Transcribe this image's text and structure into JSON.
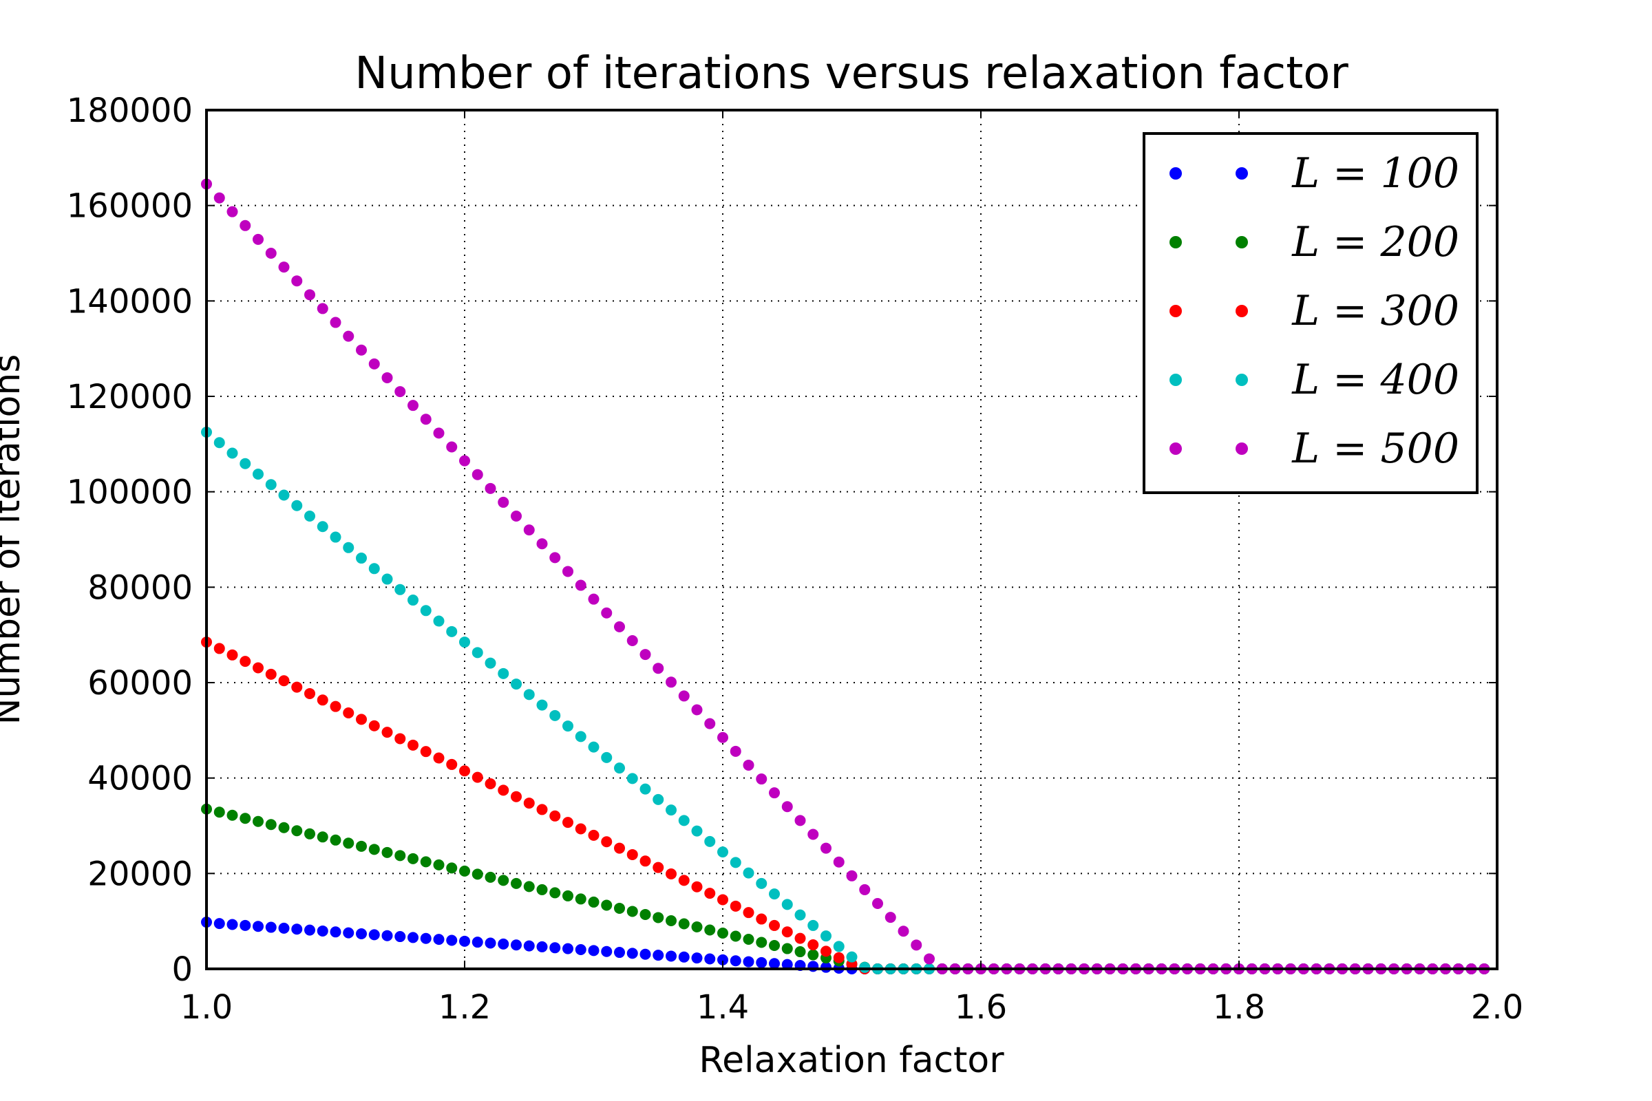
{
  "chart_data": {
    "type": "scatter",
    "title": "Number of iterations versus relaxation factor",
    "xlabel": "Relaxation factor",
    "ylabel": "Number of iterations",
    "xlim": [
      1.0,
      2.0
    ],
    "ylim": [
      0,
      180000
    ],
    "xticks": [
      "1.0",
      "1.2",
      "1.4",
      "1.6",
      "1.8",
      "2.0"
    ],
    "yticks": [
      "0",
      "20000",
      "40000",
      "60000",
      "80000",
      "100000",
      "120000",
      "140000",
      "160000",
      "180000"
    ],
    "grid": true,
    "grid_style": "dotted",
    "legend_position": "upper right",
    "x": [
      1.0,
      1.01,
      1.02,
      1.03,
      1.04,
      1.05,
      1.06,
      1.07,
      1.08,
      1.09,
      1.1,
      1.11,
      1.12,
      1.13,
      1.14,
      1.15,
      1.16,
      1.17,
      1.18,
      1.19,
      1.2,
      1.21,
      1.22,
      1.23,
      1.24,
      1.25,
      1.26,
      1.27,
      1.28,
      1.29,
      1.3,
      1.31,
      1.32,
      1.33,
      1.34,
      1.35,
      1.36,
      1.37,
      1.38,
      1.39,
      1.4,
      1.41,
      1.42,
      1.43,
      1.44,
      1.45,
      1.46,
      1.47,
      1.48,
      1.49,
      1.5,
      1.51,
      1.52,
      1.53,
      1.54,
      1.55,
      1.56,
      1.57,
      1.58,
      1.59,
      1.6,
      1.61,
      1.62,
      1.63,
      1.64,
      1.65,
      1.66,
      1.67,
      1.68,
      1.69,
      1.7,
      1.71,
      1.72,
      1.73,
      1.74,
      1.75,
      1.76,
      1.77,
      1.78,
      1.79,
      1.8,
      1.81,
      1.82,
      1.83,
      1.84,
      1.85,
      1.86,
      1.87,
      1.88,
      1.89,
      1.9,
      1.91,
      1.92,
      1.93,
      1.94,
      1.95,
      1.96,
      1.97,
      1.98,
      1.99
    ],
    "series": [
      {
        "name": "L = 100",
        "color": "#0000ff",
        "values": [
          9800,
          9500,
          9305,
          9110,
          8915,
          8720,
          8525,
          8330,
          8135,
          7940,
          7745,
          7550,
          7355,
          7160,
          6965,
          6770,
          6575,
          6380,
          6185,
          5990,
          5795,
          5600,
          5405,
          5210,
          5015,
          4820,
          4625,
          4430,
          4235,
          4040,
          3845,
          3650,
          3455,
          3260,
          3065,
          2870,
          2675,
          2480,
          2285,
          2090,
          1895,
          1700,
          1505,
          1310,
          1115,
          920,
          725,
          530,
          335,
          140,
          0,
          0,
          0,
          0,
          0,
          0,
          0,
          0,
          0,
          0,
          0,
          0,
          0,
          0,
          0,
          0,
          0,
          0,
          0,
          0,
          0,
          0,
          0,
          0,
          0,
          0,
          0,
          0,
          0,
          0,
          0,
          0,
          0,
          0,
          0,
          0,
          0,
          0,
          0,
          0,
          0,
          0,
          0,
          0,
          0,
          0,
          0,
          0,
          0,
          0
        ]
      },
      {
        "name": "L = 200",
        "color": "#008000",
        "values": [
          33500,
          32850,
          32200,
          31550,
          30900,
          30250,
          29600,
          28950,
          28300,
          27650,
          27000,
          26350,
          25700,
          25050,
          24400,
          23750,
          23100,
          22450,
          21800,
          21150,
          20500,
          19850,
          19200,
          18550,
          17900,
          17250,
          16600,
          15950,
          15300,
          14650,
          14000,
          13350,
          12700,
          12050,
          11400,
          10750,
          10100,
          9450,
          8800,
          8150,
          7500,
          6850,
          6200,
          5550,
          4900,
          4250,
          3600,
          2950,
          2300,
          1650,
          1000,
          350,
          0,
          0,
          0,
          0,
          0,
          0,
          0,
          0,
          0,
          0,
          0,
          0,
          0,
          0,
          0,
          0,
          0,
          0,
          0,
          0,
          0,
          0,
          0,
          0,
          0,
          0,
          0,
          0,
          0,
          0,
          0,
          0,
          0,
          0,
          0,
          0,
          0,
          0,
          0,
          0,
          0,
          0,
          0,
          0,
          0,
          0,
          0,
          0
        ]
      },
      {
        "name": "L = 300",
        "color": "#ff0000",
        "values": [
          68500,
          67150,
          65800,
          64450,
          63100,
          61750,
          60400,
          59050,
          57700,
          56350,
          55000,
          53650,
          52300,
          50950,
          49600,
          48250,
          46900,
          45550,
          44200,
          42850,
          41500,
          40150,
          38800,
          37450,
          36100,
          34750,
          33400,
          32050,
          30700,
          29350,
          28000,
          26650,
          25300,
          23950,
          22600,
          21250,
          19900,
          18550,
          17200,
          15850,
          14500,
          13150,
          11800,
          10450,
          9100,
          7750,
          6400,
          5050,
          3700,
          2350,
          1000,
          0,
          0,
          0,
          0,
          0,
          0,
          0,
          0,
          0,
          0,
          0,
          0,
          0,
          0,
          0,
          0,
          0,
          0,
          0,
          0,
          0,
          0,
          0,
          0,
          0,
          0,
          0,
          0,
          0,
          0,
          0,
          0,
          0,
          0,
          0,
          0,
          0,
          0,
          0,
          0,
          0,
          0,
          0,
          0,
          0,
          0,
          0,
          0,
          0
        ]
      },
      {
        "name": "L = 400",
        "color": "#00bfbf",
        "values": [
          112500,
          110300,
          108100,
          105900,
          103700,
          101500,
          99300,
          97100,
          94900,
          92700,
          90500,
          88300,
          86100,
          83900,
          81700,
          79500,
          77300,
          75100,
          72900,
          70700,
          68500,
          66300,
          64100,
          61900,
          59700,
          57500,
          55300,
          53100,
          50900,
          48700,
          46500,
          44300,
          42100,
          39900,
          37700,
          35500,
          33300,
          31100,
          28900,
          26700,
          24500,
          22300,
          20100,
          17900,
          15700,
          13500,
          11300,
          9100,
          6900,
          4700,
          2500,
          300,
          0,
          0,
          0,
          0,
          0,
          0,
          0,
          0,
          0,
          0,
          0,
          0,
          0,
          0,
          0,
          0,
          0,
          0,
          0,
          0,
          0,
          0,
          0,
          0,
          0,
          0,
          0,
          0,
          0,
          0,
          0,
          0,
          0,
          0,
          0,
          0,
          0,
          0,
          0,
          0,
          0,
          0,
          0,
          0,
          0,
          0,
          0,
          0
        ]
      },
      {
        "name": "L = 500",
        "color": "#bf00bf",
        "values": [
          164500,
          161600,
          158700,
          155800,
          152900,
          150000,
          147100,
          144200,
          141300,
          138400,
          135500,
          132600,
          129700,
          126800,
          123900,
          121000,
          118100,
          115200,
          112300,
          109400,
          106500,
          103600,
          100700,
          97800,
          94900,
          92000,
          89100,
          86200,
          83300,
          80400,
          77500,
          74600,
          71700,
          68800,
          65900,
          63000,
          60100,
          57200,
          54300,
          51400,
          48500,
          45600,
          42700,
          39800,
          36900,
          34000,
          31100,
          28200,
          25300,
          22400,
          19500,
          16600,
          13700,
          10800,
          7900,
          5000,
          2100,
          0,
          0,
          0,
          0,
          0,
          0,
          0,
          0,
          0,
          0,
          0,
          0,
          0,
          0,
          0,
          0,
          0,
          0,
          0,
          0,
          0,
          0,
          0,
          0,
          0,
          0,
          0,
          0,
          0,
          0,
          0,
          0,
          0,
          0,
          0,
          0,
          0,
          0,
          0,
          0,
          0,
          0,
          0
        ]
      }
    ]
  }
}
